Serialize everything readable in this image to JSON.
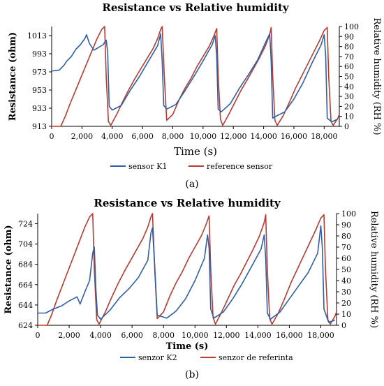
{
  "chart_data": [
    {
      "type": "line",
      "title": "Resistance vs Relative humidity",
      "xlabel": "Time (s)",
      "ylabel": "Resistance (ohm)",
      "y2label": "Relative humidity (RH %)",
      "xlim": [
        0,
        19000
      ],
      "ylim": [
        913,
        1023
      ],
      "y2lim": [
        0,
        100
      ],
      "xticks": [
        "0",
        "2,000",
        "4,000",
        "6,000",
        "8,000",
        "10,000",
        "12,000",
        "14,000",
        "16,000",
        "18,000"
      ],
      "yticks": [
        "913",
        "933",
        "953",
        "973",
        "993",
        "1013"
      ],
      "y2ticks": [
        "0",
        "10",
        "20",
        "30",
        "40",
        "50",
        "60",
        "70",
        "80",
        "90",
        "100"
      ],
      "legend_position": "bottom",
      "series": [
        {
          "name": "sensor K1",
          "axis": "left",
          "color": "#2f5ea8",
          "x": [
            0,
            500,
            800,
            1000,
            1300,
            1600,
            1900,
            2200,
            2300,
            2500,
            2800,
            3100,
            3400,
            3600,
            3700,
            3800,
            4000,
            4600,
            5200,
            5800,
            6400,
            7000,
            7200,
            7300,
            7400,
            7600,
            8200,
            8800,
            9400,
            10000,
            10600,
            10800,
            10900,
            11000,
            11200,
            11800,
            12400,
            13000,
            13600,
            14200,
            14400,
            14500,
            14600,
            14800,
            15400,
            16000,
            16600,
            17200,
            17800,
            18000,
            18100,
            18200,
            18500,
            18900
          ],
          "y": [
            974,
            975,
            980,
            985,
            990,
            998,
            1003,
            1010,
            1014,
            1004,
            997,
            1000,
            1003,
            1008,
            995,
            935,
            931,
            936,
            953,
            968,
            985,
            1002,
            1015,
            985,
            936,
            932,
            937,
            952,
            968,
            985,
            1003,
            1013,
            990,
            932,
            929,
            938,
            955,
            970,
            986,
            1008,
            1015,
            985,
            922,
            924,
            929,
            943,
            961,
            983,
            1003,
            1014,
            990,
            922,
            918,
            921
          ]
        },
        {
          "name": "reference sensor",
          "axis": "right",
          "color": "#b83a30",
          "x": [
            0,
            600,
            900,
            1200,
            1500,
            1800,
            2100,
            2400,
            2700,
            3000,
            3300,
            3500,
            3600,
            3750,
            3900,
            4300,
            4700,
            5100,
            5500,
            5900,
            6300,
            6700,
            7000,
            7200,
            7300,
            7450,
            7600,
            8000,
            8400,
            8800,
            9200,
            9600,
            10000,
            10400,
            10700,
            10900,
            11000,
            11150,
            11300,
            11700,
            12100,
            12500,
            12900,
            13300,
            13700,
            14100,
            14400,
            14500,
            14600,
            14750,
            14900,
            15300,
            15700,
            16100,
            16500,
            16900,
            17300,
            17700,
            18000,
            18200,
            18300,
            18450,
            18600,
            18900,
            19000
          ],
          "y": [
            0,
            0,
            10,
            22,
            33,
            44,
            55,
            66,
            77,
            88,
            97,
            100,
            50,
            5,
            1,
            12,
            25,
            37,
            48,
            58,
            68,
            78,
            88,
            97,
            100,
            48,
            6,
            12,
            26,
            38,
            48,
            60,
            70,
            80,
            90,
            98,
            50,
            7,
            1,
            12,
            24,
            36,
            46,
            57,
            68,
            80,
            92,
            99,
            50,
            6,
            1,
            11,
            24,
            38,
            50,
            62,
            74,
            86,
            96,
            99,
            50,
            5,
            1,
            8,
            12
          ]
        }
      ]
    },
    {
      "type": "line",
      "title": "Resistance vs Relative humidity",
      "xlabel": "Time (s)",
      "ylabel": "Resistance (ohm)",
      "y2label": "Relative humidity (RH %)",
      "xlim": [
        0,
        19000
      ],
      "ylim": [
        624,
        734
      ],
      "y2lim": [
        0,
        100
      ],
      "xticks": [
        "0",
        "2,000",
        "4,000",
        "6,000",
        "8,000",
        "10,000",
        "12,000",
        "14,000",
        "16,000",
        "18,000"
      ],
      "yticks": [
        "624",
        "644",
        "664",
        "684",
        "704",
        "724"
      ],
      "y2ticks": [
        "0",
        "10",
        "20",
        "30",
        "40",
        "50",
        "60",
        "70",
        "80",
        "90",
        "100"
      ],
      "legend_position": "bottom",
      "series": [
        {
          "name": "senzor K2",
          "axis": "left",
          "color": "#2f5ea8",
          "x": [
            0,
            500,
            1000,
            1500,
            2000,
            2500,
            2700,
            3000,
            3300,
            3500,
            3600,
            3700,
            3800,
            4000,
            4600,
            5200,
            5800,
            6400,
            7000,
            7200,
            7300,
            7450,
            7600,
            8200,
            8800,
            9400,
            10000,
            10600,
            10800,
            10900,
            11000,
            11200,
            11800,
            12400,
            13000,
            13600,
            14200,
            14400,
            14500,
            14600,
            14800,
            15400,
            16000,
            16600,
            17200,
            17800,
            18000,
            18100,
            18200,
            18500,
            18900
          ],
          "y": [
            636,
            636,
            640,
            643,
            648,
            652,
            645,
            657,
            668,
            695,
            701,
            660,
            634,
            630,
            639,
            651,
            660,
            671,
            688,
            715,
            720,
            680,
            634,
            631,
            638,
            650,
            668,
            690,
            713,
            700,
            640,
            631,
            637,
            650,
            665,
            682,
            699,
            713,
            690,
            636,
            630,
            637,
            650,
            663,
            676,
            695,
            722,
            700,
            640,
            627,
            629
          ]
        },
        {
          "name": "senzor de referinta",
          "axis": "right",
          "color": "#b83a30",
          "x": [
            0,
            600,
            900,
            1200,
            1500,
            1800,
            2100,
            2400,
            2700,
            3000,
            3300,
            3500,
            3600,
            3750,
            3900,
            4300,
            4700,
            5100,
            5500,
            5900,
            6300,
            6700,
            7000,
            7200,
            7300,
            7450,
            7600,
            8000,
            8400,
            8800,
            9200,
            9600,
            10000,
            10400,
            10700,
            10900,
            11000,
            11150,
            11300,
            11700,
            12100,
            12500,
            12900,
            13300,
            13700,
            14100,
            14400,
            14500,
            14600,
            14750,
            14900,
            15300,
            15700,
            16100,
            16500,
            16900,
            17300,
            17700,
            18000,
            18200,
            18300,
            18450,
            18600,
            18900,
            19000
          ],
          "y": [
            0,
            0,
            10,
            22,
            33,
            44,
            55,
            66,
            77,
            88,
            97,
            100,
            50,
            5,
            1,
            12,
            25,
            37,
            48,
            58,
            68,
            78,
            88,
            97,
            100,
            48,
            6,
            12,
            26,
            38,
            48,
            60,
            70,
            80,
            90,
            98,
            50,
            7,
            1,
            12,
            24,
            36,
            46,
            57,
            68,
            80,
            92,
            99,
            50,
            6,
            1,
            11,
            24,
            38,
            50,
            62,
            74,
            86,
            96,
            99,
            50,
            5,
            1,
            8,
            12
          ]
        }
      ]
    }
  ],
  "panels": [
    {
      "label": "(a)"
    },
    {
      "label": "(b)"
    }
  ]
}
